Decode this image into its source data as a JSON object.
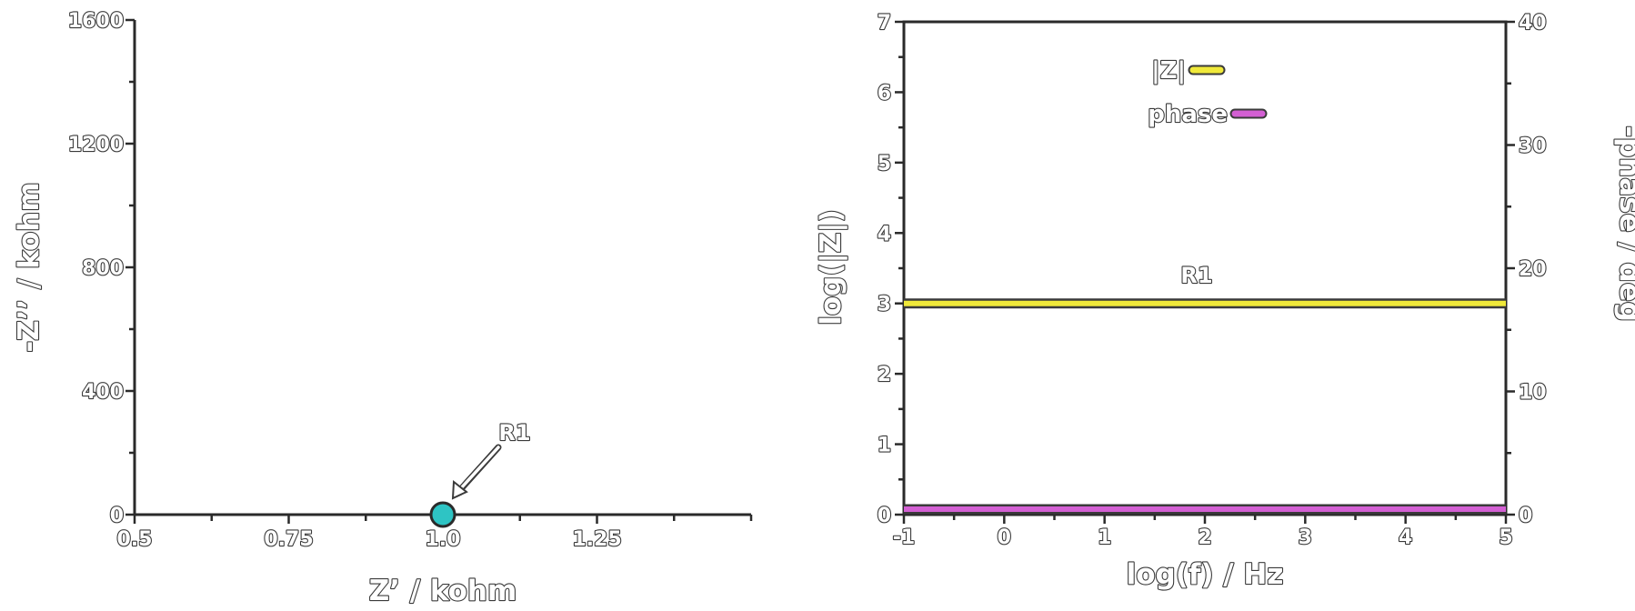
{
  "chart_data": [
    {
      "type": "scatter",
      "xlabel": "Z’ / kohm",
      "ylabel": "-Z’’ / kohm",
      "xlim": [
        0.5,
        1.5
      ],
      "ylim": [
        0,
        1600
      ],
      "x_ticks": [
        0.5,
        0.75,
        1.0,
        1.25
      ],
      "x_tick_labels": [
        "0.5",
        "0.75",
        "1.0",
        "1.25"
      ],
      "y_ticks": [
        0,
        400,
        800,
        1200,
        1600
      ],
      "y_tick_labels": [
        "0",
        "400",
        "800",
        "1200",
        "1600"
      ],
      "series": [
        {
          "points": [
            {
              "x": 1.0,
              "y": 0
            }
          ],
          "color": "#2ec4c4"
        }
      ],
      "annotations": [
        {
          "text": "R1",
          "points_to": {
            "x": 1.0,
            "y": 0
          }
        }
      ],
      "grid": false
    },
    {
      "type": "line",
      "xlabel": "log(f) / Hz",
      "ylabel": "log(|Z|)",
      "ylabel_right": "-phase / deg",
      "xlim": [
        -1,
        5
      ],
      "ylim": [
        0,
        7
      ],
      "ylim_right": [
        0,
        40
      ],
      "x_ticks": [
        -1,
        0,
        1,
        2,
        3,
        4,
        5
      ],
      "y_ticks": [
        0,
        1,
        2,
        3,
        4,
        5,
        6,
        7
      ],
      "y_ticks_right": [
        0,
        10,
        20,
        30,
        40
      ],
      "series": [
        {
          "name": "|Z|",
          "x": [
            -1,
            5
          ],
          "values": [
            3,
            3
          ],
          "axis": "left",
          "color": "#f0e93a"
        },
        {
          "name": "phase",
          "x": [
            -1,
            5
          ],
          "values": [
            0,
            0
          ],
          "axis": "right",
          "color": "#d35fd3"
        }
      ],
      "annotations": [
        {
          "text": "R1"
        }
      ],
      "legend_position": "top-center",
      "grid": false
    }
  ]
}
